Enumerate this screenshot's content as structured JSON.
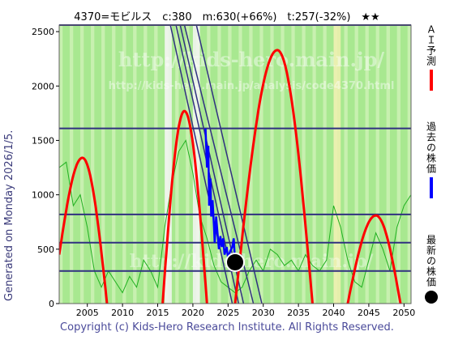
{
  "header": {
    "title": "4370=モビルス　c:380　m:630(+66%)　t:257(-32%)　★★"
  },
  "generated_label": "Generated on Monday 2026/1/5.",
  "copyright": "Copyright (c) Kids-Hero Research Institute. All Rights Reserved.",
  "watermark": {
    "line1": "http://kids-hero.main.jp/",
    "line2": "http://kids-hero.main.jp/analysis/code4370.html",
    "line3": "http://kids-hero.main.jp/"
  },
  "legend": {
    "ai_forecast": "ＡＩ予測",
    "past_price": "過去の株価",
    "latest_price": "最新の株価"
  },
  "colors": {
    "background_green": "#a8e890",
    "light_green": "#c8f0b0",
    "white_band": "#f4f4f4",
    "yellow_band": "#f0f0b0",
    "prediction": "#ff0000",
    "past_price": "#0000ff",
    "latest_dot": "#000000",
    "horizontal_lines": "#303080",
    "trend_lines": "#303080",
    "green_curve": "#20b020"
  },
  "chart_data": {
    "type": "line",
    "title": "4370=モビルス　c:380　m:630(+66%)　t:257(-32%)　★★",
    "xlim": [
      2001,
      2051
    ],
    "ylim": [
      0,
      2560
    ],
    "x_ticks": [
      2005,
      2010,
      2015,
      2020,
      2025,
      2030,
      2035,
      2040,
      2045,
      2050
    ],
    "y_ticks": [
      0,
      500,
      1000,
      1500,
      2000,
      2500
    ],
    "horizontal_levels": [
      300,
      560,
      820,
      1610,
      2560
    ],
    "latest": {
      "x": 2026.0,
      "y": 380
    },
    "ai_prediction": [
      {
        "x0": 2001.0,
        "x1": 2007.8,
        "peak_x": 2004.3,
        "peak_y": 1340,
        "start_y": 450,
        "end_y": 0
      },
      {
        "x0": 2015.7,
        "x1": 2022.0,
        "peak_x": 2018.8,
        "peak_y": 1770,
        "start_y": 0,
        "end_y": 0
      },
      {
        "x0": 2026.0,
        "x1": 2037.0,
        "peak_x": 2032.0,
        "peak_y": 2330,
        "start_y": 0,
        "end_y": 0
      },
      {
        "x0": 2042.0,
        "x1": 2049.5,
        "peak_x": 2046.0,
        "peak_y": 810,
        "start_y": 0,
        "end_y": 0
      }
    ],
    "past_price": [
      [
        2021.8,
        1610
      ],
      [
        2022.0,
        1250
      ],
      [
        2022.2,
        1450
      ],
      [
        2022.3,
        900
      ],
      [
        2022.5,
        1150
      ],
      [
        2022.6,
        800
      ],
      [
        2022.8,
        950
      ],
      [
        2023.0,
        700
      ],
      [
        2023.1,
        560
      ],
      [
        2023.3,
        800
      ],
      [
        2023.5,
        650
      ],
      [
        2023.7,
        500
      ],
      [
        2023.9,
        620
      ],
      [
        2024.1,
        520
      ],
      [
        2024.3,
        600
      ],
      [
        2024.5,
        450
      ],
      [
        2024.8,
        520
      ],
      [
        2025.0,
        420
      ],
      [
        2025.3,
        480
      ],
      [
        2025.6,
        520
      ],
      [
        2025.8,
        600
      ],
      [
        2026.0,
        380
      ]
    ],
    "trend_lines": [
      {
        "from": [
          2016.8,
          2560
        ],
        "to": [
          2025.6,
          0
        ]
      },
      {
        "from": [
          2017.6,
          2560
        ],
        "to": [
          2026.5,
          0
        ]
      },
      {
        "from": [
          2018.2,
          2560
        ],
        "to": [
          2027.2,
          0
        ]
      },
      {
        "from": [
          2018.8,
          2560
        ],
        "to": [
          2028.6,
          0
        ]
      },
      {
        "from": [
          2020.5,
          2560
        ],
        "to": [
          2029.8,
          0
        ]
      }
    ],
    "green_curve": [
      [
        2001,
        1250
      ],
      [
        2002,
        1300
      ],
      [
        2003,
        900
      ],
      [
        2004,
        1000
      ],
      [
        2005,
        700
      ],
      [
        2006,
        300
      ],
      [
        2007,
        150
      ],
      [
        2008,
        300
      ],
      [
        2009,
        200
      ],
      [
        2010,
        100
      ],
      [
        2011,
        250
      ],
      [
        2012,
        150
      ],
      [
        2013,
        400
      ],
      [
        2014,
        300
      ],
      [
        2015,
        150
      ],
      [
        2016,
        700
      ],
      [
        2017,
        1100
      ],
      [
        2018,
        1400
      ],
      [
        2019,
        1500
      ],
      [
        2020,
        1200
      ],
      [
        2021,
        800
      ],
      [
        2022,
        600
      ],
      [
        2023,
        350
      ],
      [
        2024,
        200
      ],
      [
        2025,
        150
      ],
      [
        2026,
        100
      ],
      [
        2027,
        150
      ],
      [
        2028,
        300
      ],
      [
        2029,
        400
      ],
      [
        2030,
        300
      ],
      [
        2031,
        500
      ],
      [
        2032,
        450
      ],
      [
        2033,
        350
      ],
      [
        2034,
        400
      ],
      [
        2035,
        300
      ],
      [
        2036,
        450
      ],
      [
        2037,
        350
      ],
      [
        2038,
        300
      ],
      [
        2039,
        400
      ],
      [
        2040,
        900
      ],
      [
        2041,
        700
      ],
      [
        2042,
        400
      ],
      [
        2043,
        200
      ],
      [
        2044,
        150
      ],
      [
        2045,
        400
      ],
      [
        2046,
        650
      ],
      [
        2047,
        500
      ],
      [
        2048,
        300
      ],
      [
        2049,
        700
      ],
      [
        2050,
        900
      ],
      [
        2051,
        1000
      ]
    ],
    "bands": [
      {
        "from": 2016.0,
        "to": 2017.0,
        "kind": "white"
      },
      {
        "from": 2020.0,
        "to": 2021.0,
        "kind": "white"
      },
      {
        "from": 2040.0,
        "to": 2041.0,
        "kind": "yellow"
      }
    ]
  }
}
